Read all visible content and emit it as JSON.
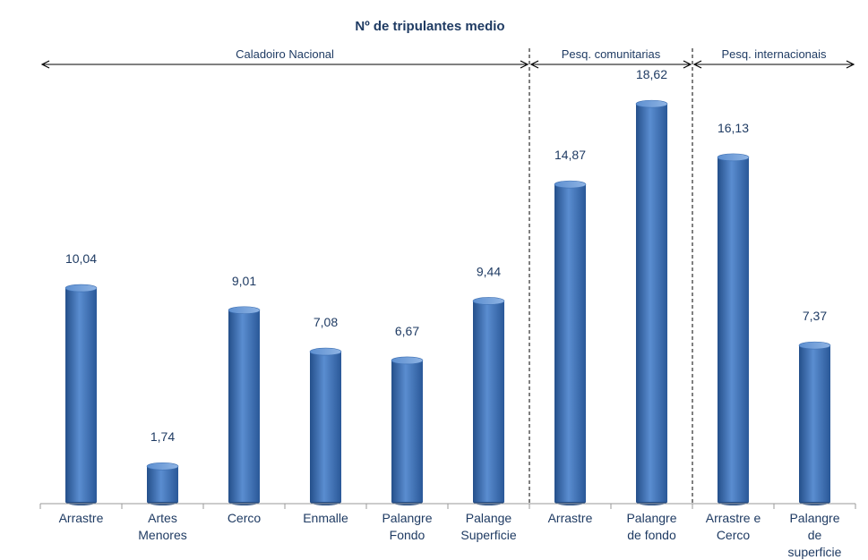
{
  "chart_data": {
    "type": "bar",
    "title": "Nº de tripulantes medio",
    "categories": [
      [
        "Arrastre"
      ],
      [
        "Artes",
        "Menores"
      ],
      [
        "Cerco"
      ],
      [
        "Enmalle"
      ],
      [
        "Palangre",
        "Fondo"
      ],
      [
        "Palange",
        "Superficie"
      ],
      [
        "Arrastre"
      ],
      [
        "Palangre",
        "de fondo"
      ],
      [
        "Arrastre e",
        "Cerco"
      ],
      [
        "Palangre",
        "de",
        "superficie"
      ]
    ],
    "values": [
      10.04,
      1.74,
      9.01,
      7.08,
      6.67,
      9.44,
      14.87,
      18.62,
      16.13,
      7.37
    ],
    "value_labels": [
      "10,04",
      "1,74",
      "9,01",
      "7,08",
      "6,67",
      "9,44",
      "14,87",
      "18,62",
      "16,13",
      "7,37"
    ],
    "groups": [
      {
        "label": "Caladoiro Nacional",
        "start": 0,
        "end": 5
      },
      {
        "label": "Pesq. comunitarias",
        "start": 6,
        "end": 7
      },
      {
        "label": "Pesq. internacionais",
        "start": 8,
        "end": 9
      }
    ],
    "ylim": [
      0,
      20
    ],
    "grid": false,
    "colors": {
      "bar_dark": "#244f8a",
      "bar_mid": "#4a7ec4",
      "bar_light": "#7ea8de",
      "title": "#1f3b63",
      "label": "#1f3b63"
    }
  }
}
